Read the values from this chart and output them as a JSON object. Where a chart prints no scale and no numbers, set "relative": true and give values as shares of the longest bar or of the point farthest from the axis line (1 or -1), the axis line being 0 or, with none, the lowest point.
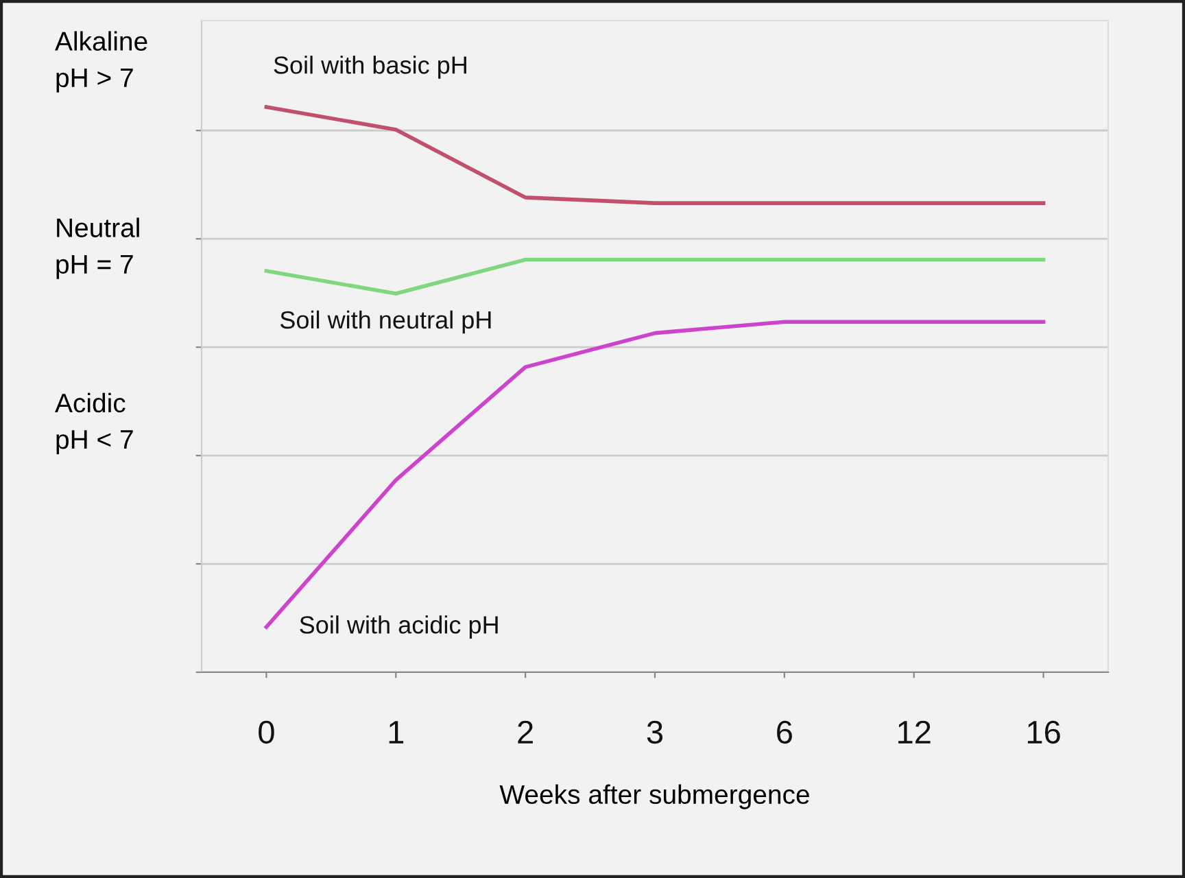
{
  "chart_data": {
    "type": "line",
    "relative": true,
    "xlabel": "Weeks after submergence",
    "categories": [
      "0",
      "1",
      "2",
      "3",
      "6",
      "12",
      "16"
    ],
    "series": [
      {
        "name": "Soil with basic pH",
        "color": "#c0506e",
        "values": [
          1.0,
          0.96,
          0.84,
          0.83,
          0.83,
          0.83,
          0.83
        ]
      },
      {
        "name": "Soil with neutral pH",
        "color": "#7fd87f",
        "values": [
          0.71,
          0.67,
          0.73,
          0.73,
          0.73,
          0.73,
          0.73
        ]
      },
      {
        "name": "Soil with acidic pH",
        "color": "#cc44cc",
        "values": [
          0.08,
          0.34,
          0.54,
          0.6,
          0.62,
          0.62,
          0.62
        ]
      }
    ],
    "annotations": [
      "Alkaline\npH > 7",
      "Neutral\npH = 7",
      "Acidic\npH < 7"
    ],
    "grid": "y",
    "legend": false,
    "marker": "none",
    "line_style": "solid"
  }
}
